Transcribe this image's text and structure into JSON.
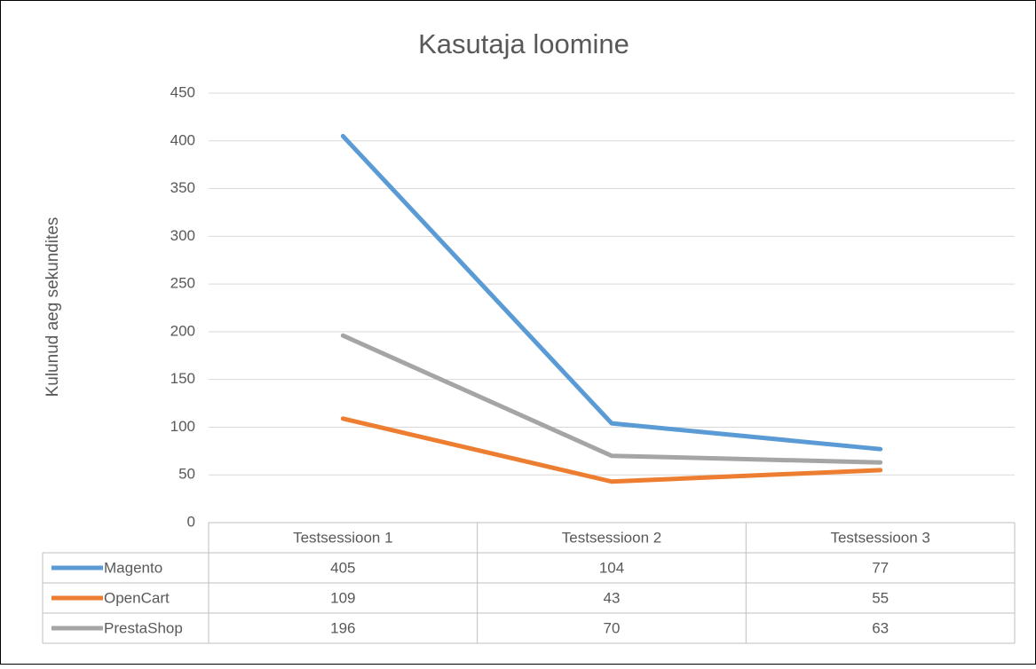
{
  "chart_data": {
    "type": "line",
    "title": "Kasutaja loomine",
    "y_label": "Kulunud aeg sekundites",
    "categories": [
      "Testsessioon 1",
      "Testsessioon 2",
      "Testsessioon 3"
    ],
    "series": [
      {
        "name": "Magento",
        "color": "#5b9bd5",
        "values": [
          405,
          104,
          77
        ]
      },
      {
        "name": "OpenCart",
        "color": "#ed7d31",
        "values": [
          109,
          43,
          55
        ]
      },
      {
        "name": "PrestaShop",
        "color": "#a5a5a5",
        "values": [
          196,
          70,
          63
        ]
      }
    ],
    "ylim": [
      0,
      450
    ],
    "yticks": [
      0,
      50,
      100,
      150,
      200,
      250,
      300,
      350,
      400,
      450
    ],
    "grid": true,
    "data_table": true
  }
}
